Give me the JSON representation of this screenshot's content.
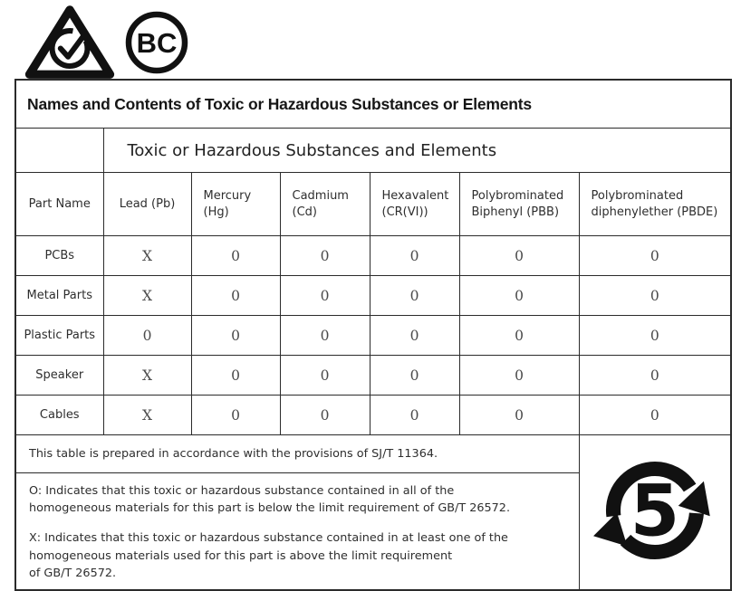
{
  "page": {
    "background": "#ffffff",
    "border_color": "#2b2b2b"
  },
  "header_marks": {
    "rcm_mark": "rcm-triangle-check-mark",
    "bc_mark_label": "BC",
    "efup_years": "5"
  },
  "table": {
    "title": "Names and Contents of Toxic or Hazardous Substances or Elements",
    "subheader": "Toxic or Hazardous Substances and Elements",
    "columns": [
      "Part Name",
      "Lead (Pb)",
      "Mercury (Hg)",
      "Cadmium (Cd)",
      "Hexavalent (CR(VI))",
      "Polybrominated Biphenyl (PBB)",
      "Polybrominated diphenylether (PBDE)"
    ],
    "rows": [
      {
        "part": "PCBs",
        "values": [
          "X",
          "0",
          "0",
          "0",
          "0",
          "0"
        ]
      },
      {
        "part": "Metal Parts",
        "values": [
          "X",
          "0",
          "0",
          "0",
          "0",
          "0"
        ]
      },
      {
        "part": "Plastic Parts",
        "values": [
          "0",
          "0",
          "0",
          "0",
          "0",
          "0"
        ]
      },
      {
        "part": "Speaker",
        "values": [
          "X",
          "0",
          "0",
          "0",
          "0",
          "0"
        ]
      },
      {
        "part": "Cables",
        "values": [
          "X",
          "0",
          "0",
          "0",
          "0",
          "0"
        ]
      }
    ],
    "provision_note": "This table is prepared in accordance with the provisions of SJ/T 11364.",
    "note_o": "O: Indicates that this toxic or hazardous substance contained in all of the\nhomogeneous materials for this part is below the limit requirement of GB/T 26572.",
    "note_x": "X: Indicates that this toxic or hazardous substance contained in at least one of the\nhomogeneous materials used for this part is above the limit requirement\nof GB/T 26572."
  }
}
